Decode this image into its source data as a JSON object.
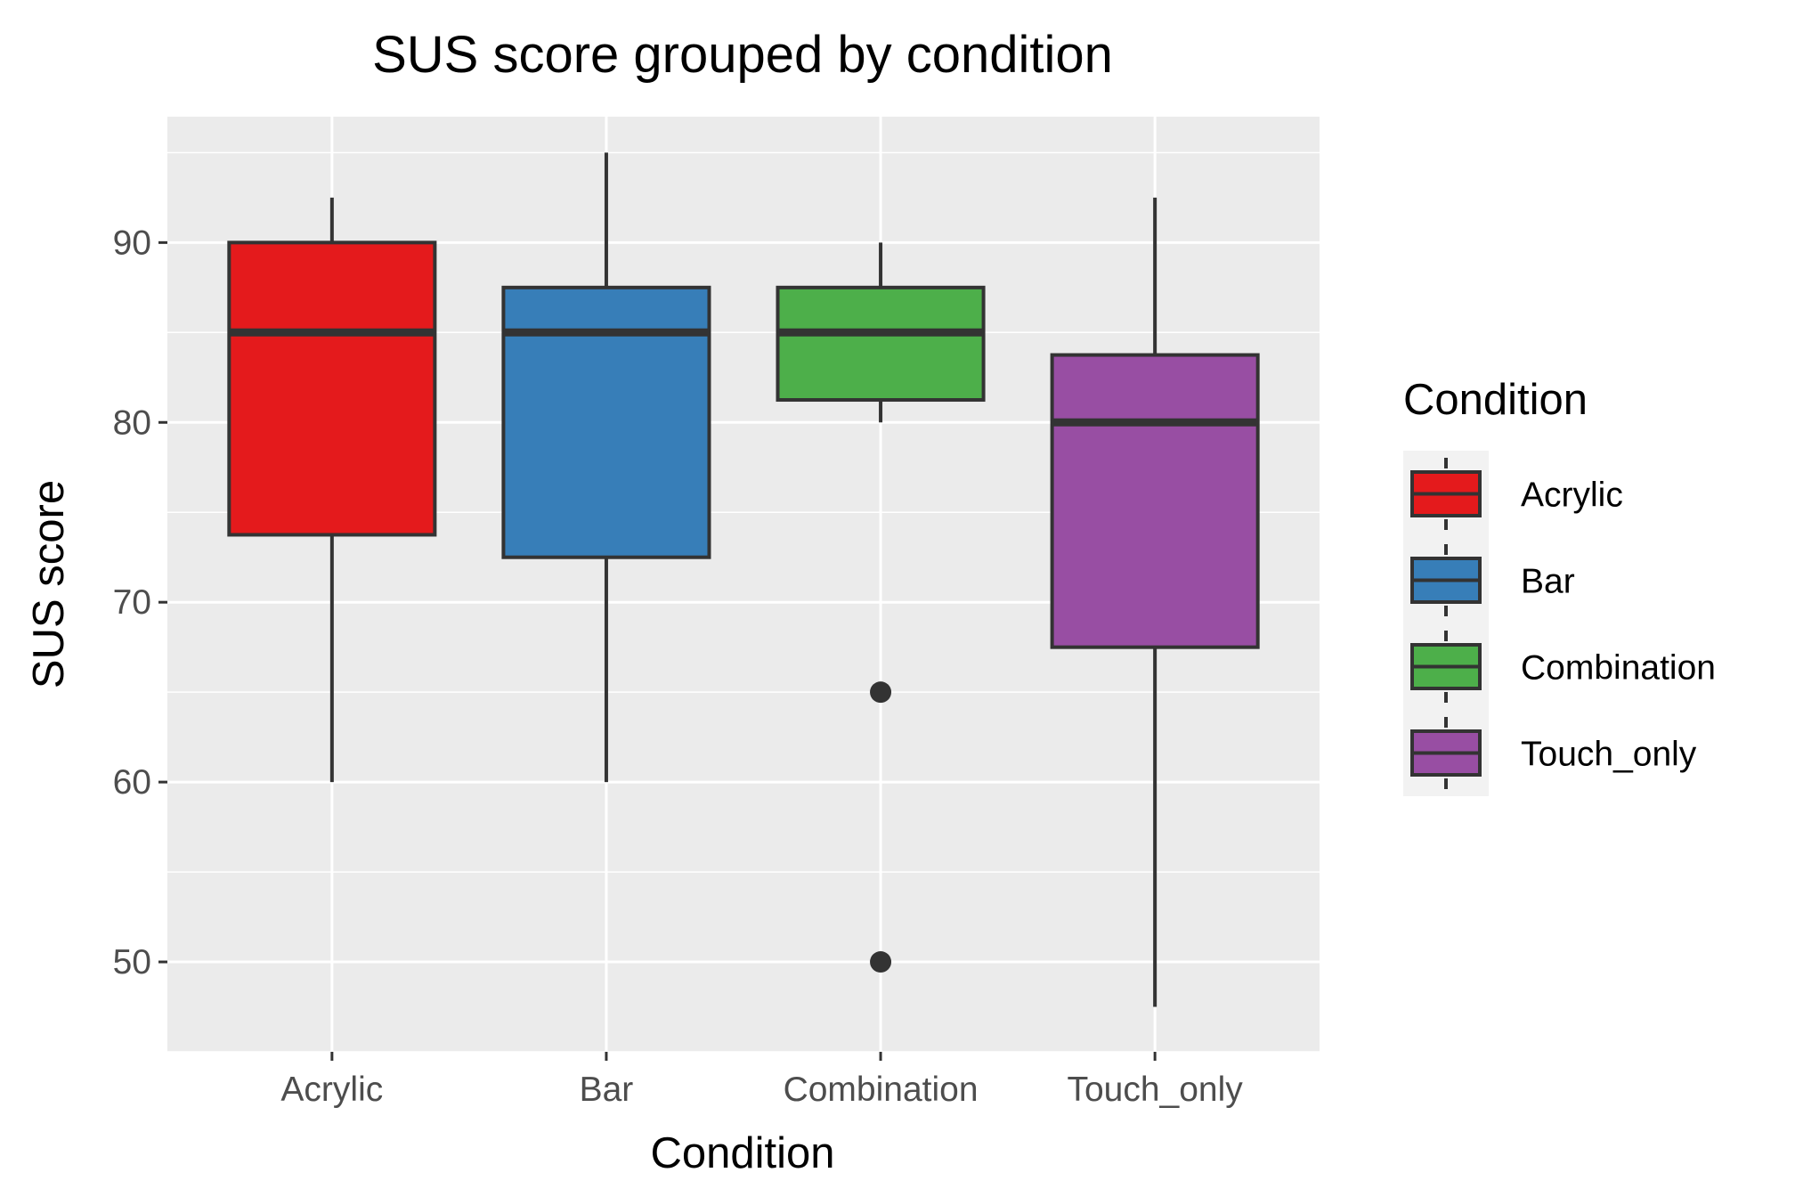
{
  "chart_data": {
    "type": "boxplot",
    "title": "SUS score grouped by condition",
    "xlabel": "Condition",
    "ylabel": "SUS score",
    "ylim": [
      45,
      97
    ],
    "yticks": [
      50,
      60,
      70,
      80,
      90
    ],
    "grid": true,
    "legend": {
      "title": "Condition",
      "position": "right"
    },
    "categories": [
      "Acrylic",
      "Bar",
      "Combination",
      "Touch_only"
    ],
    "colors": [
      "#e41a1c",
      "#377eb8",
      "#4daf4a",
      "#984ea3"
    ],
    "boxes": [
      {
        "category": "Acrylic",
        "whisker_low": 60,
        "q1": 73.75,
        "median": 85,
        "q3": 90,
        "whisker_high": 92.5,
        "outliers": []
      },
      {
        "category": "Bar",
        "whisker_low": 60,
        "q1": 72.5,
        "median": 85,
        "q3": 87.5,
        "whisker_high": 95,
        "outliers": []
      },
      {
        "category": "Combination",
        "whisker_low": 80,
        "q1": 81.25,
        "median": 85,
        "q3": 87.5,
        "whisker_high": 90,
        "outliers": [
          65,
          50
        ]
      },
      {
        "category": "Touch_only",
        "whisker_low": 47.5,
        "q1": 67.5,
        "median": 80,
        "q3": 83.75,
        "whisker_high": 92.5,
        "outliers": []
      }
    ]
  }
}
